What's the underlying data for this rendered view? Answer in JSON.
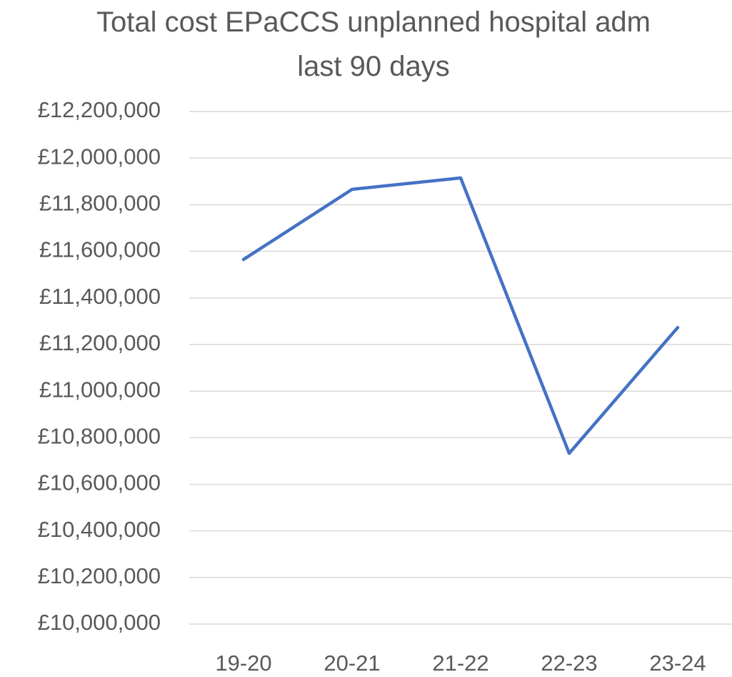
{
  "chart_data": {
    "type": "line",
    "title": "Total cost EPaCCS unplanned hospital adm last 90 days",
    "categories": [
      "19-20",
      "20-21",
      "21-22",
      "22-23",
      "23-24"
    ],
    "series": [
      {
        "name": "Total cost",
        "color": "#4472c4",
        "values": [
          11565000,
          11866000,
          11915000,
          10733000,
          11273000
        ]
      }
    ],
    "ylim": [
      10000000,
      12200000
    ],
    "yticks": [
      {
        "value": 10000000,
        "label": "£10,000,000"
      },
      {
        "value": 10200000,
        "label": "£10,200,000"
      },
      {
        "value": 10400000,
        "label": "£10,400,000"
      },
      {
        "value": 10600000,
        "label": "£10,600,000"
      },
      {
        "value": 10800000,
        "label": "£10,800,000"
      },
      {
        "value": 11000000,
        "label": "£11,000,000"
      },
      {
        "value": 11200000,
        "label": "£11,200,000"
      },
      {
        "value": 11400000,
        "label": "£11,400,000"
      },
      {
        "value": 11600000,
        "label": "£11,600,000"
      },
      {
        "value": 11800000,
        "label": "£11,800,000"
      },
      {
        "value": 12000000,
        "label": "£12,000,000"
      },
      {
        "value": 12200000,
        "label": "£12,200,000"
      }
    ],
    "grid": true
  }
}
